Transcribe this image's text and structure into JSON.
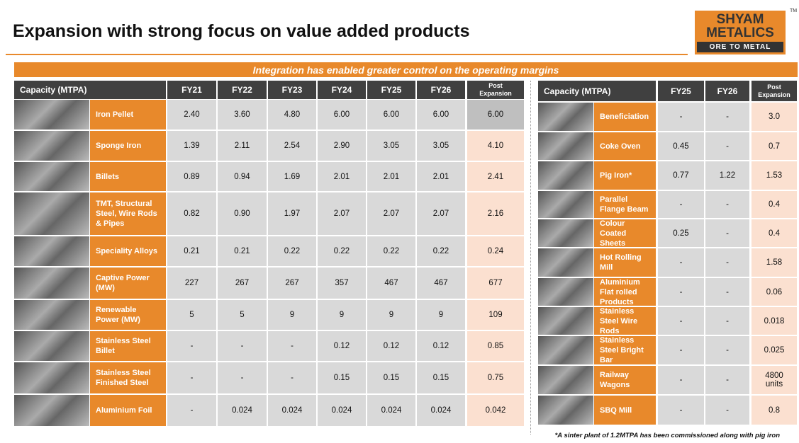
{
  "header": {
    "title": "Expansion with strong focus on value added products",
    "logo": {
      "line1": "SHYAM",
      "line2": "METALICS",
      "tagline": "ORE TO METAL",
      "tm": "TM"
    }
  },
  "banner": "Integration has enabled greater control on the operating margins",
  "left_table": {
    "columns": [
      "Capacity (MTPA)",
      "FY21",
      "FY22",
      "FY23",
      "FY24",
      "FY25",
      "FY26",
      "Post Expansion"
    ],
    "rows": [
      [
        "Iron Pellet",
        "2.40",
        "3.60",
        "4.80",
        "6.00",
        "6.00",
        "6.00",
        "6.00"
      ],
      [
        "Sponge Iron",
        "1.39",
        "2.11",
        "2.54",
        "2.90",
        "3.05",
        "3.05",
        "4.10"
      ],
      [
        "Billets",
        "0.89",
        "0.94",
        "1.69",
        "2.01",
        "2.01",
        "2.01",
        "2.41"
      ],
      [
        "TMT, Structural Steel, Wire Rods & Pipes",
        "0.82",
        "0.90",
        "1.97",
        "2.07",
        "2.07",
        "2.07",
        "2.16"
      ],
      [
        "Speciality Alloys",
        "0.21",
        "0.21",
        "0.22",
        "0.22",
        "0.22",
        "0.22",
        "0.24"
      ],
      [
        "Captive Power (MW)",
        "227",
        "267",
        "267",
        "357",
        "467",
        "467",
        "677"
      ],
      [
        "Renewable Power (MW)",
        "5",
        "5",
        "9",
        "9",
        "9",
        "9",
        "109"
      ],
      [
        "Stainless Steel Billet",
        "-",
        "-",
        "-",
        "0.12",
        "0.12",
        "0.12",
        "0.85"
      ],
      [
        "Stainless Steel Finished Steel",
        "-",
        "-",
        "-",
        "0.15",
        "0.15",
        "0.15",
        "0.75"
      ],
      [
        "Aluminium Foil",
        "-",
        "0.024",
        "0.024",
        "0.024",
        "0.024",
        "0.024",
        "0.042"
      ]
    ]
  },
  "right_table": {
    "columns": [
      "Capacity (MTPA)",
      "FY25",
      "FY26",
      "Post Expansion"
    ],
    "rows": [
      [
        "Beneficiation",
        "-",
        "-",
        "3.0"
      ],
      [
        "Coke Oven",
        "0.45",
        "-",
        "0.7"
      ],
      [
        "Pig Iron*",
        "0.77",
        "1.22",
        "1.53"
      ],
      [
        "Parallel Flange Beam",
        "-",
        "-",
        "0.4"
      ],
      [
        "Colour Coated Sheets",
        "0.25",
        "-",
        "0.4"
      ],
      [
        "Hot Rolling Mill",
        "-",
        "-",
        "1.58"
      ],
      [
        "Aluminium Flat rolled Products",
        "-",
        "-",
        "0.06"
      ],
      [
        "Stainless Steel Wire Rods",
        "-",
        "-",
        "0.018"
      ],
      [
        "Stainless Steel Bright Bar",
        "-",
        "-",
        "0.025"
      ],
      [
        "Railway Wagons",
        "-",
        "-",
        "4800 units"
      ],
      [
        "SBQ Mill",
        "-",
        "-",
        "0.8"
      ]
    ]
  },
  "footnote": "*A sinter plant of 1.2MTPA has been commissioned along with pig iron"
}
